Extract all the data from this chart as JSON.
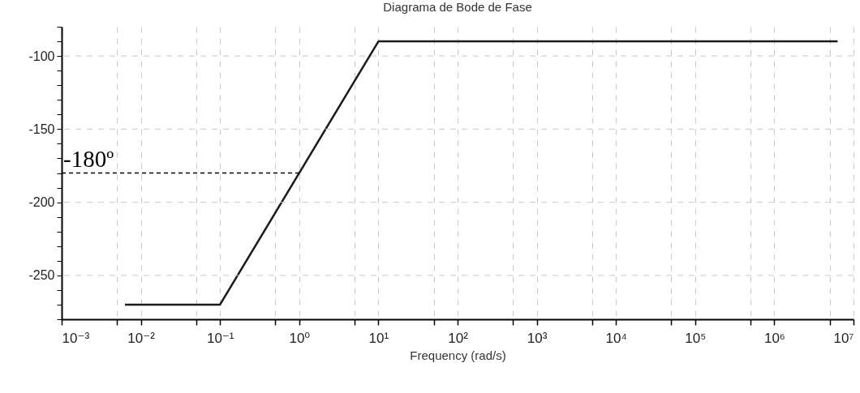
{
  "chart_data": {
    "type": "line",
    "title": "Diagrama de Bode de Fase",
    "xlabel": "Frequency (rad/s)",
    "log": "x",
    "grid": true,
    "xlim": [
      0.001,
      10000000
    ],
    "ylim": [
      -280,
      -80
    ],
    "xticks": [
      {
        "value": 0.001,
        "label": "10⁻³"
      },
      {
        "value": 0.005,
        "label": null
      },
      {
        "value": 0.01,
        "label": "10⁻²"
      },
      {
        "value": 0.05,
        "label": null
      },
      {
        "value": 0.1,
        "label": "10⁻¹"
      },
      {
        "value": 0.5,
        "label": null
      },
      {
        "value": 1,
        "label": "10⁰"
      },
      {
        "value": 5,
        "label": null
      },
      {
        "value": 10,
        "label": "10¹"
      },
      {
        "value": 50,
        "label": null
      },
      {
        "value": 100,
        "label": "10²"
      },
      {
        "value": 500,
        "label": null
      },
      {
        "value": 1000,
        "label": "10³"
      },
      {
        "value": 5000,
        "label": null
      },
      {
        "value": 10000,
        "label": "10⁴"
      },
      {
        "value": 50000,
        "label": null
      },
      {
        "value": 100000,
        "label": "10⁵"
      },
      {
        "value": 500000,
        "label": null
      },
      {
        "value": 1000000,
        "label": "10⁶"
      },
      {
        "value": 5000000,
        "label": null
      },
      {
        "value": 10000000,
        "label": "10⁷"
      }
    ],
    "yticks": [
      {
        "value": -280,
        "label": null
      },
      {
        "value": -270,
        "label": null
      },
      {
        "value": -260,
        "label": null
      },
      -250,
      {
        "value": -240,
        "label": null
      },
      {
        "value": -230,
        "label": null
      },
      {
        "value": -220,
        "label": null
      },
      {
        "value": -210,
        "label": null
      },
      -200,
      {
        "value": -190,
        "label": null
      },
      {
        "value": -180,
        "label": null
      },
      {
        "value": -170,
        "label": null
      },
      {
        "value": -160,
        "label": null
      },
      -150,
      {
        "value": -140,
        "label": null
      },
      {
        "value": -130,
        "label": null
      },
      {
        "value": -120,
        "label": null
      },
      {
        "value": -110,
        "label": null
      },
      -100,
      {
        "value": -90,
        "label": null
      },
      {
        "value": -80,
        "label": null
      }
    ],
    "series": [
      {
        "color": "#1a1a1a",
        "x": [
          0.0063,
          0.1,
          10,
          6300000
        ],
        "values": [
          -270,
          -270,
          -90,
          -90
        ]
      },
      {
        "color": "#000000",
        "line_style": "dashed",
        "x": [
          0.001,
          1
        ],
        "values": [
          -180,
          -180
        ]
      }
    ],
    "annotations": [
      "-180º"
    ]
  }
}
